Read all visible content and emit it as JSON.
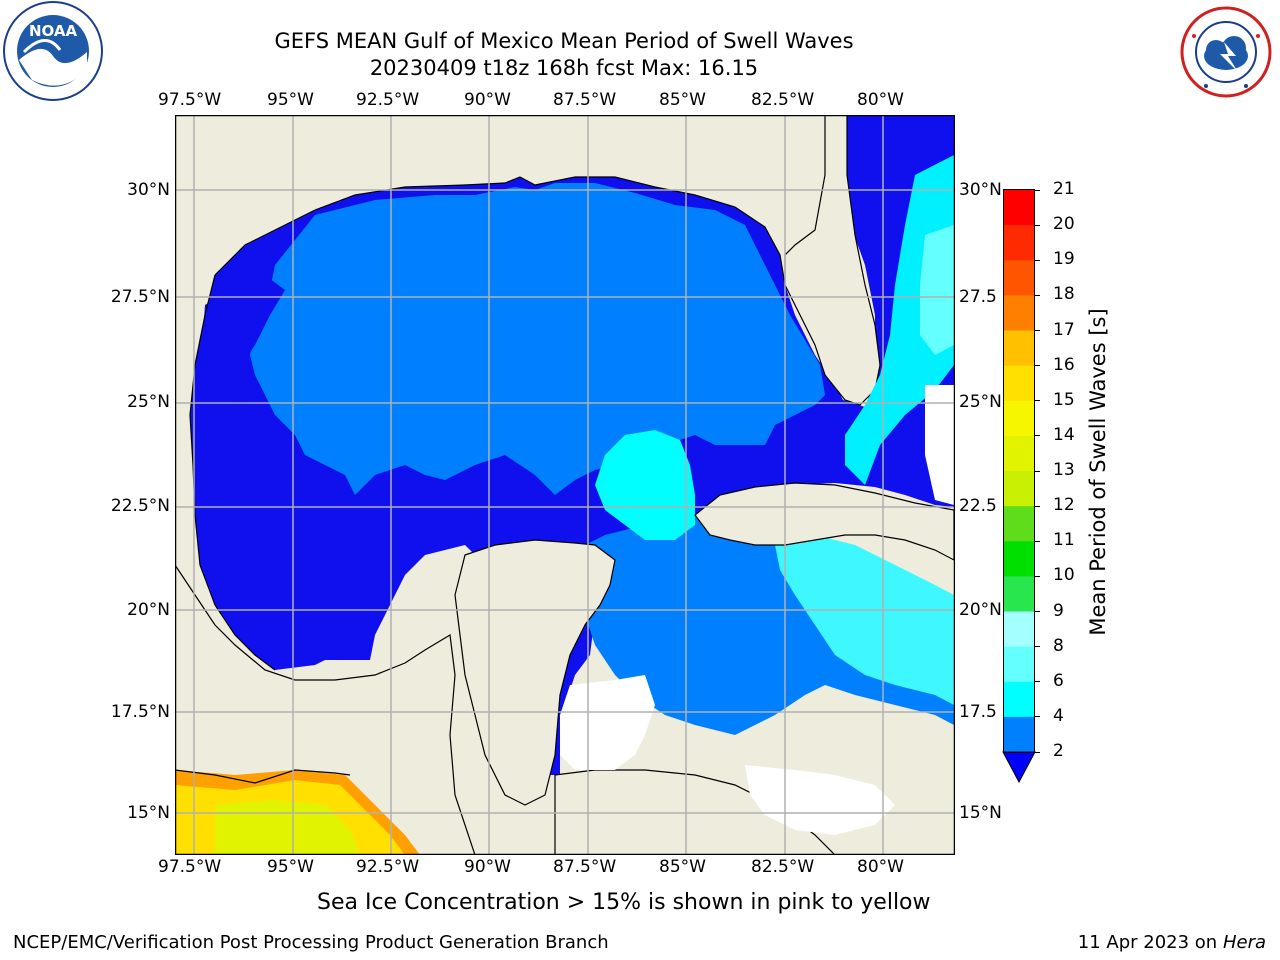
{
  "title": {
    "line1": "GEFS MEAN Gulf of Mexico Mean Period of Swell Waves",
    "line2": "20230409 t18z 168h fcst   Max: 16.15"
  },
  "axes": {
    "lon_labels": [
      "97.5°W",
      "95°W",
      "92.5°W",
      "90°W",
      "87.5°W",
      "85°W",
      "82.5°W",
      "80°W"
    ],
    "lat_labels_left": [
      "30°N",
      "27.5°N",
      "25°N",
      "22.5°N",
      "20°N",
      "17.5°N",
      "15°N"
    ],
    "lat_labels_right": [
      "30°N",
      "27.5",
      "25°N",
      "22.5",
      "20°N",
      "17.5",
      "15°N"
    ]
  },
  "colorbar": {
    "label": "Mean Period of Swell Waves [s]",
    "ticks": [
      "21",
      "20",
      "19",
      "18",
      "17",
      "16",
      "15",
      "14",
      "13",
      "12",
      "11",
      "10",
      "9",
      "8",
      "6",
      "4",
      "2"
    ],
    "colors": [
      "#ff0000",
      "#ff2a00",
      "#ff5500",
      "#ff7f00",
      "#ff9f00",
      "#ffc000",
      "#ffe000",
      "#f6f600",
      "#e2f300",
      "#c8f000",
      "#5fdd1a",
      "#00e000",
      "#27e64e",
      "#5af57c",
      "#a4ffff",
      "#64ffff",
      "#00ffff",
      "#007fff",
      "#0000ff"
    ]
  },
  "note": "Sea Ice Concentration > 15% is shown in pink to yellow",
  "footer": {
    "left": "NCEP/EMC/Verification Post Processing Product Generation Branch",
    "right_prefix": "11 Apr 2023 on ",
    "right_italic": "Hera"
  },
  "logos": {
    "noaa_text": "NOAA",
    "nws_text": "NATIONAL WEATHER SERVICE"
  },
  "colors": {
    "land": "#eeecdc",
    "deep_blue": "#1010ee",
    "mid_blue": "#0080ff",
    "cyan": "#00f0ff",
    "grid": "#b0b0b0"
  }
}
